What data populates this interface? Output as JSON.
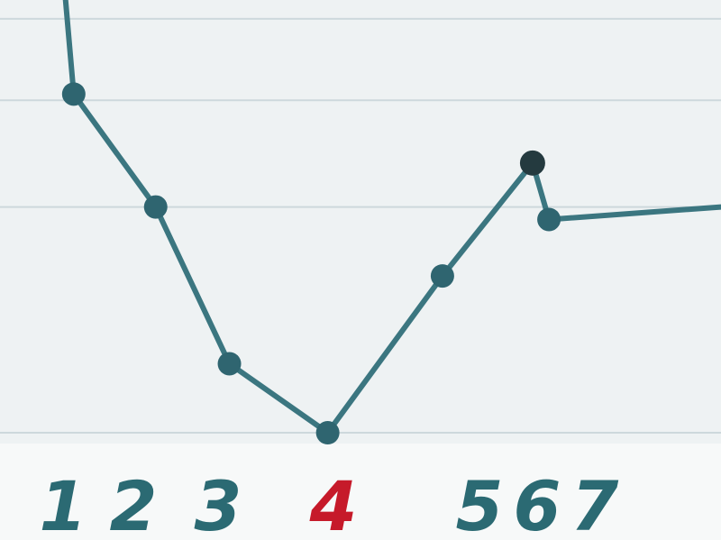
{
  "chart_data": {
    "type": "line",
    "x_tick_labels": [
      {
        "text": "1",
        "x": 1,
        "highlight": false
      },
      {
        "text": "2",
        "x": 2,
        "highlight": false
      },
      {
        "text": "3",
        "x": 3,
        "highlight": false
      },
      {
        "text": "4",
        "x": 4,
        "highlight": true
      },
      {
        "text": "5",
        "x": 5,
        "highlight": false
      },
      {
        "text": "6",
        "x": 6,
        "highlight": false
      },
      {
        "text": "7",
        "x": 7,
        "highlight": false
      }
    ],
    "series": [
      {
        "points": [
          {
            "x": 0.9,
            "y": 7.4,
            "marker": true
          },
          {
            "x": 1.9,
            "y": 5.6,
            "marker": true
          },
          {
            "x": 2.8,
            "y": 3.1,
            "marker": true
          },
          {
            "x": 4.0,
            "y": 2.0,
            "marker": true
          },
          {
            "x": 5.4,
            "y": 4.5,
            "marker": true
          },
          {
            "x": 6.5,
            "y": 6.3,
            "marker": true
          },
          {
            "x": 6.7,
            "y": 5.4,
            "marker": true
          }
        ],
        "lead_in": {
          "x": 0.8,
          "y": 8.9
        },
        "tail_end": {
          "x": 8.8,
          "y": 5.6
        }
      }
    ],
    "xlim": [
      0,
      8.8
    ],
    "ylim": [
      2,
      8.9
    ],
    "gridlines": [
      2,
      5.6,
      7.3,
      8.6
    ],
    "grid": true,
    "legend": "none",
    "colors": {
      "line": "#3b7680",
      "marker": "#2f6570",
      "marker_peak": "#243a3f",
      "grid": "#cdd8dc",
      "label": "#2b6a73",
      "label_highlight": "#c61a2a",
      "background": "#eef2f3"
    }
  }
}
